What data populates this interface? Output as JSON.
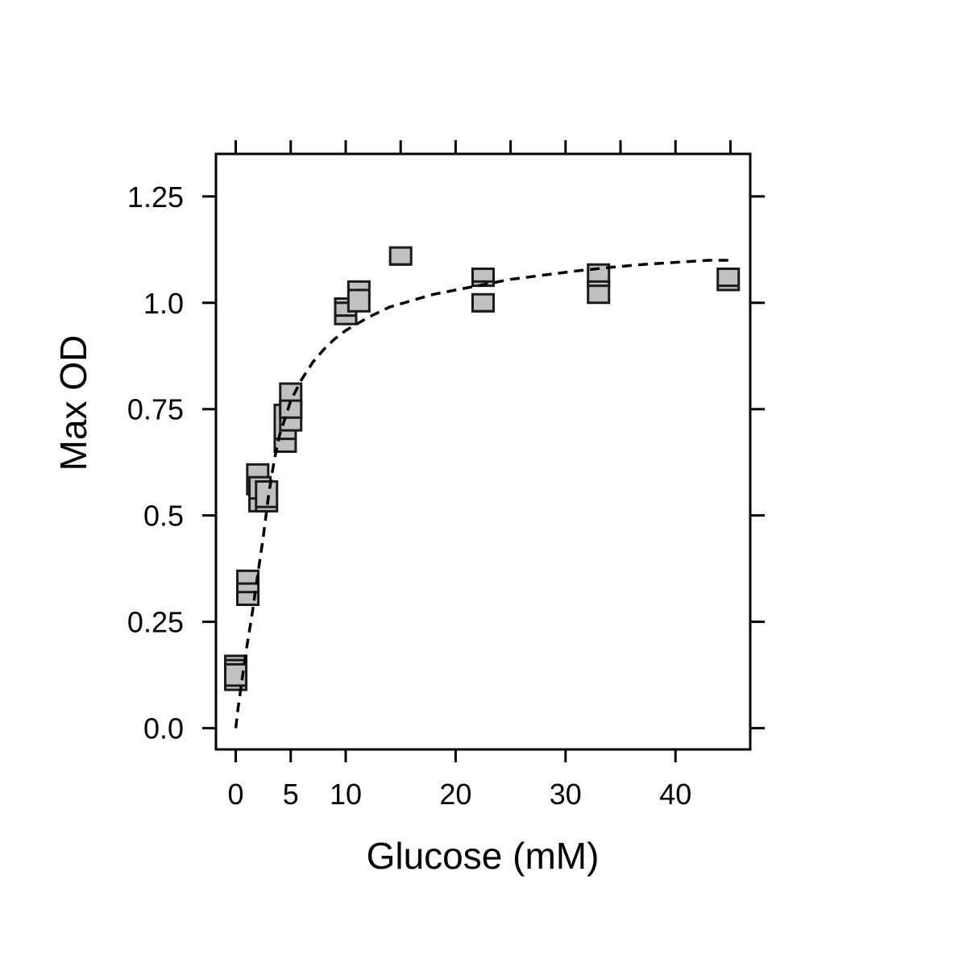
{
  "chart_data": {
    "type": "scatter",
    "title": "",
    "xlabel": "Glucose (mM)",
    "ylabel": "Max OD",
    "xlim": [
      -1.8,
      46.8
    ],
    "ylim": [
      -0.05,
      1.35
    ],
    "x_ticks": [
      0,
      5,
      10,
      20,
      30,
      40
    ],
    "x_tick_labels": [
      "0",
      "5",
      "10",
      "20",
      "30",
      "40"
    ],
    "x_top_ticks": [
      0,
      5,
      10,
      15,
      20,
      25,
      30,
      35,
      40,
      45
    ],
    "y_ticks": [
      0,
      0.25,
      0.5,
      0.75,
      1.0,
      1.25
    ],
    "y_tick_labels": [
      "0.0",
      "0.25",
      "0.5",
      "0.75",
      "1.0",
      "1.25"
    ],
    "grid": false,
    "legend": "none",
    "colors": {
      "box_fill": "#c0c0c0",
      "stroke": "#1a1a1a",
      "curve": "#000000"
    },
    "series": [
      {
        "type": "box",
        "boxes": [
          {
            "x": 0.0,
            "low": 0.09,
            "high": 0.17,
            "median": 0.11
          },
          {
            "x": 0.0,
            "low": 0.1,
            "high": 0.16,
            "median": 0.15
          },
          {
            "x": 1.1,
            "low": 0.3,
            "high": 0.37,
            "median": 0.33
          },
          {
            "x": 1.1,
            "low": 0.29,
            "high": 0.34,
            "median": 0.32
          },
          {
            "x": 2.0,
            "low": 0.55,
            "high": 0.62,
            "median": 0.58
          },
          {
            "x": 2.2,
            "low": 0.51,
            "high": 0.59,
            "median": 0.54
          },
          {
            "x": 2.8,
            "low": 0.51,
            "high": 0.58,
            "median": 0.52
          },
          {
            "x": 4.5,
            "low": 0.65,
            "high": 0.76,
            "median": 0.68
          },
          {
            "x": 5.0,
            "low": 0.73,
            "high": 0.81,
            "median": 0.76
          },
          {
            "x": 5.0,
            "low": 0.7,
            "high": 0.77,
            "median": 0.73
          },
          {
            "x": 10.0,
            "low": 0.96,
            "high": 1.01,
            "median": 0.98
          },
          {
            "x": 10.0,
            "low": 0.95,
            "high": 1.0,
            "median": 0.97
          },
          {
            "x": 11.2,
            "low": 0.98,
            "high": 1.05,
            "median": 1.03
          },
          {
            "x": 15.0,
            "low": 1.09,
            "high": 1.13,
            "median": 1.09
          },
          {
            "x": 22.5,
            "low": 1.04,
            "high": 1.08,
            "median": 1.05
          },
          {
            "x": 22.5,
            "low": 0.98,
            "high": 1.02,
            "median": 0.98
          },
          {
            "x": 33.0,
            "low": 1.04,
            "high": 1.09,
            "median": 1.04
          },
          {
            "x": 33.0,
            "low": 1.0,
            "high": 1.05,
            "median": 1.04
          },
          {
            "x": 44.8,
            "low": 1.03,
            "high": 1.08,
            "median": 1.04
          }
        ]
      },
      {
        "type": "line",
        "style": "dashed",
        "x": [
          0,
          0.2,
          0.5,
          0.8,
          1.0,
          1.5,
          2.0,
          2.5,
          3.0,
          3.5,
          4.0,
          5.0,
          6.0,
          7.0,
          8.0,
          9.0,
          10.0,
          12.0,
          14.0,
          16.0,
          18.0,
          20.0,
          22.0,
          25.0,
          28.0,
          31.0,
          34.0,
          37.0,
          40.0,
          43.0,
          44.8
        ],
        "y": [
          0.0,
          0.045,
          0.1,
          0.155,
          0.19,
          0.27,
          0.36,
          0.45,
          0.55,
          0.63,
          0.69,
          0.77,
          0.82,
          0.86,
          0.89,
          0.915,
          0.935,
          0.965,
          0.99,
          1.005,
          1.02,
          1.03,
          1.04,
          1.055,
          1.065,
          1.075,
          1.083,
          1.09,
          1.095,
          1.1,
          1.1
        ]
      }
    ]
  }
}
